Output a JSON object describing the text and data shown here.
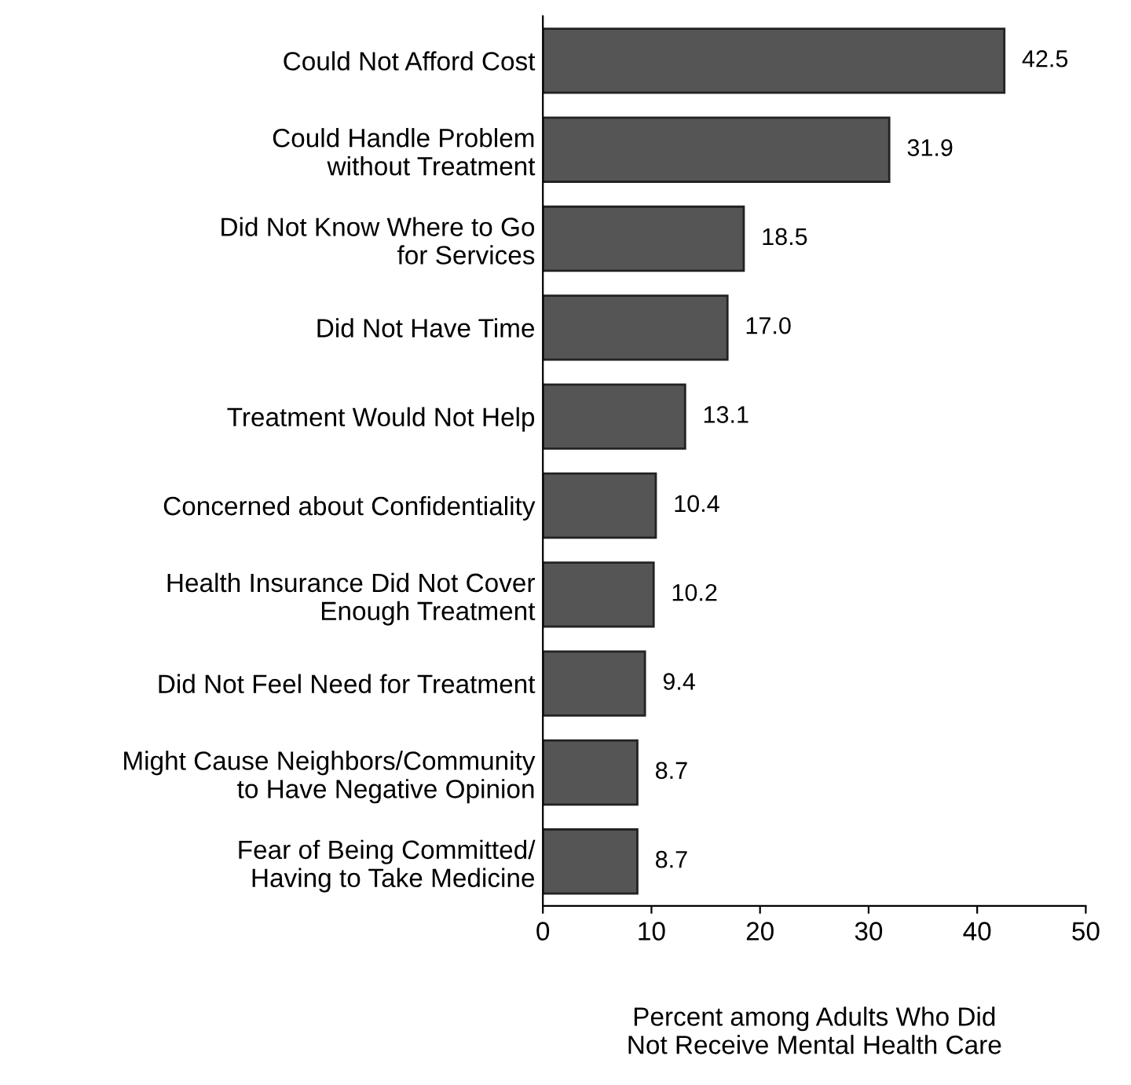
{
  "chart_data": {
    "type": "bar",
    "orientation": "horizontal",
    "categories": [
      "Could Not Afford Cost",
      "Could Handle Problem\nwithout Treatment",
      "Did Not Know Where to Go\nfor Services",
      "Did Not Have Time",
      "Treatment Would Not Help",
      "Concerned about Confidentiality",
      "Health Insurance Did Not Cover\nEnough Treatment",
      "Did Not Feel Need for Treatment",
      "Might Cause Neighbors/Community\nto Have Negative Opinion",
      "Fear of Being Committed/\nHaving to Take Medicine"
    ],
    "values": [
      42.5,
      31.9,
      18.5,
      17.0,
      13.1,
      10.4,
      10.2,
      9.4,
      8.7,
      8.7
    ],
    "value_labels": [
      "42.5",
      "31.9",
      "18.5",
      "17.0",
      "13.1",
      "10.4",
      "10.2",
      "9.4",
      "8.7",
      "8.7"
    ],
    "color": "#555555",
    "xlabel": "Percent among Adults Who Did\nNot Receive Mental Health Care",
    "xlim": [
      0,
      50
    ],
    "xticks": [
      0,
      10,
      20,
      30,
      40,
      50
    ],
    "grid": false
  }
}
